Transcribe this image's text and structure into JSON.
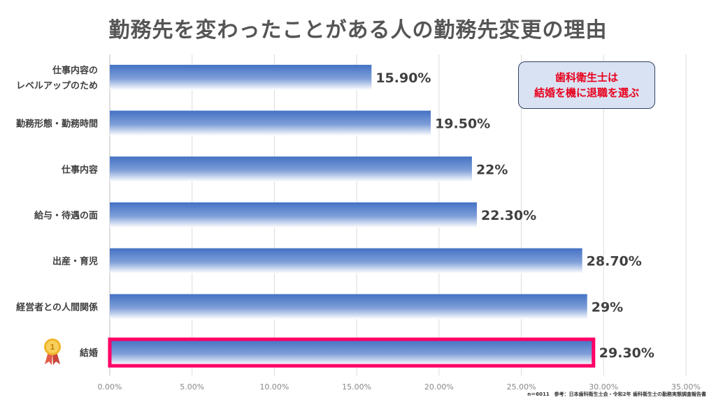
{
  "title": "勤務先を変わったことがある人の勤務先変更の理由",
  "callout": {
    "line1": "歯科衛生士は",
    "line2": "結婚を機に退職を選ぶ"
  },
  "source": "n＝6011　参考：日本歯科衛生士会・令和2年 歯科衛生士の勤務実態調査報告書",
  "colors": {
    "bar_top": "#4472c4",
    "bar_bottom": "#ffffff",
    "highlight": "#ff0066",
    "gold": "#f0b429"
  },
  "chart_data": {
    "type": "bar",
    "orientation": "horizontal",
    "categories": [
      "仕事内容の\nレベルアップのため",
      "勤務形態・勤務時間",
      "仕事内容",
      "給与・待遇の面",
      "出産・育児",
      "経営者との人間関係",
      "結婚"
    ],
    "values": [
      15.9,
      19.5,
      22,
      22.3,
      28.7,
      29,
      29.3
    ],
    "data_labels": [
      "15.90%",
      "19.50%",
      "22%",
      "22.30%",
      "28.70%",
      "29%",
      "29.30%"
    ],
    "xlim": [
      0,
      35
    ],
    "x_ticks": [
      0,
      5,
      10,
      15,
      20,
      25,
      30,
      35
    ],
    "x_tick_labels": [
      "0.00%",
      "5.00%",
      "10.00%",
      "15.00%",
      "20.00%",
      "25.00%",
      "30.00%",
      "35.00%"
    ],
    "grid": "vertical",
    "highlight": "結婚",
    "medal_icon": "medal-icon"
  }
}
